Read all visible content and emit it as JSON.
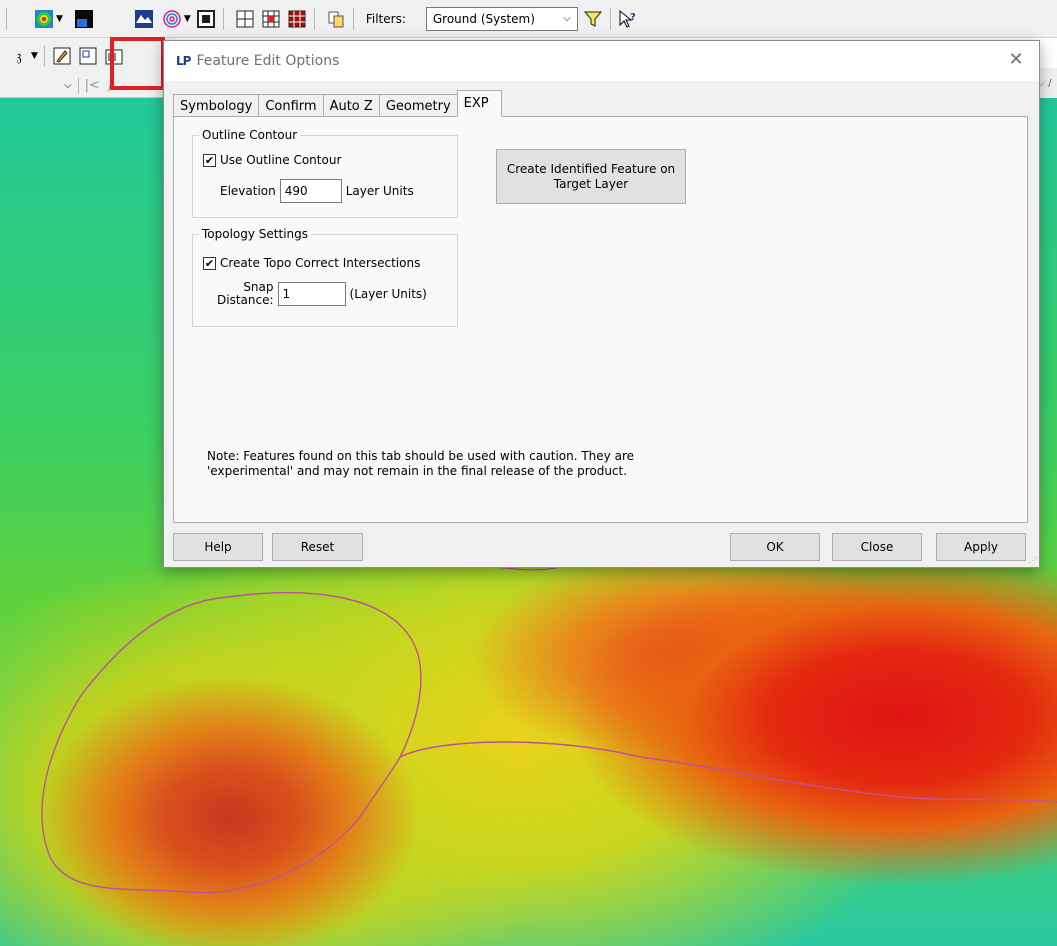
{
  "toolbar": {
    "filters_label": "Filters:",
    "filter_value": "Ground (System)",
    "icons": [
      "color-map-icon",
      "contour-icon",
      "profile-icon",
      "terrain-icon",
      "fingerprint-icon",
      "crop-icon",
      "grid-icon",
      "grid-red-icon",
      "grid-dark-icon",
      "copy-icon",
      "filter-funnel-icon",
      "help-pointer-icon"
    ]
  },
  "dialog": {
    "app_icon_text": "LP",
    "title": "Feature Edit Options",
    "tabs": [
      {
        "label": "Symbology"
      },
      {
        "label": "Confirm"
      },
      {
        "label": "Auto Z"
      },
      {
        "label": "Geometry"
      },
      {
        "label": "EXP"
      }
    ],
    "outline_contour": {
      "group_title": "Outline Contour",
      "use_outline_label": "Use Outline Contour",
      "use_outline_checked": true,
      "elevation_label": "Elevation",
      "elevation_value": "490",
      "elevation_units": "Layer Units"
    },
    "topology": {
      "group_title": "Topology Settings",
      "topo_label": "Create Topo Correct Intersections",
      "topo_checked": true,
      "snap_label_1": "Snap",
      "snap_label_2": "Distance:",
      "snap_value": "1",
      "snap_units": "(Layer Units)"
    },
    "create_identified_line1": "Create Identified Feature on",
    "create_identified_line2": "Target Layer",
    "note_line1": "Note:  Features found on this tab should be used with caution.  They are",
    "note_line2": "'experimental' and may not remain in the final release of the product.",
    "buttons": {
      "help": "Help",
      "reset": "Reset",
      "ok": "OK",
      "close": "Close",
      "apply": "Apply"
    }
  }
}
